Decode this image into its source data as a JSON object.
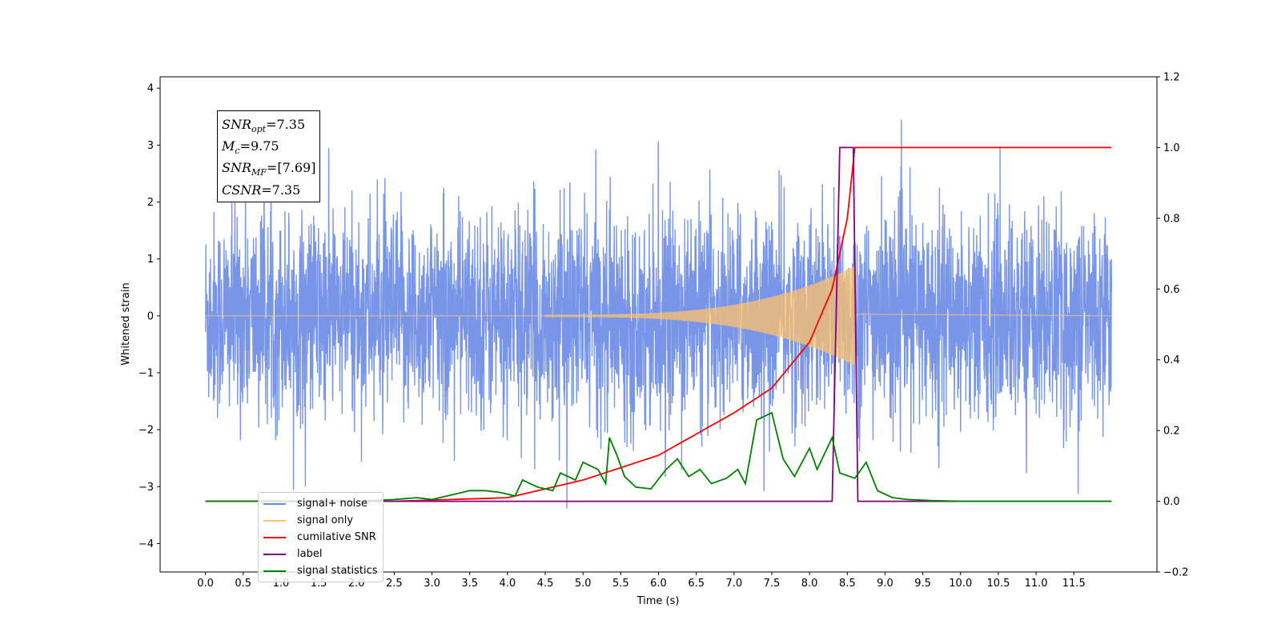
{
  "chart_data": {
    "type": "line",
    "title": "",
    "xlabel": "Time (s)",
    "ylabel": "Whitened strain",
    "y2label": "",
    "xlim": [
      -0.6,
      12.6
    ],
    "ylim": [
      -4.5,
      4.2
    ],
    "y2lim": [
      -0.2,
      1.2
    ],
    "x_ticks": [
      "0.0",
      "0.5",
      "1.0",
      "1.5",
      "2.0",
      "2.5",
      "3.0",
      "3.5",
      "4.0",
      "4.5",
      "5.0",
      "5.5",
      "6.0",
      "6.5",
      "7.0",
      "7.5",
      "8.0",
      "8.5",
      "9.0",
      "9.5",
      "10.0",
      "10.5",
      "11.0",
      "11.5"
    ],
    "y_ticks": [
      "4",
      "3",
      "2",
      "1",
      "0",
      "−1",
      "−2",
      "−3",
      "−4"
    ],
    "y2_ticks": [
      "1.2",
      "1.0",
      "0.8",
      "0.6",
      "0.4",
      "0.2",
      "0.0",
      "−0.2"
    ],
    "grid": false,
    "legend_position": "lower-left",
    "series": [
      {
        "name": "signal+ noise",
        "axis": "left",
        "color": "#6a89e6",
        "x_range": [
          0,
          12
        ],
        "noise_rms": 0.9,
        "peak_min": -4.1,
        "peak_max": 3.8
      },
      {
        "name": "signal only",
        "axis": "left",
        "color": "#ffc36b",
        "chirp_start": 4.5,
        "merger_time": 8.6,
        "peak_amplitude": 0.85
      },
      {
        "name": "cumilative SNR",
        "axis": "right",
        "x": [
          0.0,
          2.5,
          4.0,
          5.0,
          6.0,
          7.0,
          7.5,
          8.0,
          8.3,
          8.5,
          8.6,
          8.62,
          12.0
        ],
        "y": [
          0.0,
          0.0,
          0.01,
          0.06,
          0.13,
          0.25,
          0.32,
          0.45,
          0.6,
          0.8,
          1.0,
          1.0,
          1.0
        ],
        "color": "#ff0000"
      },
      {
        "name": "label",
        "axis": "right",
        "x": [
          0.0,
          8.3,
          8.4,
          8.58,
          8.64,
          12.0
        ],
        "y": [
          0.0,
          0.0,
          1.0,
          1.0,
          0.0,
          0.0
        ],
        "color": "#800080"
      },
      {
        "name": "signal statistics",
        "axis": "right",
        "x": [
          0.0,
          1.0,
          2.0,
          2.5,
          2.8,
          3.0,
          3.3,
          3.5,
          3.7,
          3.9,
          4.1,
          4.2,
          4.4,
          4.6,
          4.7,
          4.9,
          5.0,
          5.2,
          5.3,
          5.35,
          5.45,
          5.55,
          5.7,
          5.9,
          6.1,
          6.25,
          6.4,
          6.55,
          6.7,
          6.9,
          7.05,
          7.15,
          7.3,
          7.5,
          7.65,
          7.8,
          8.0,
          8.1,
          8.3,
          8.4,
          8.6,
          8.75,
          8.9,
          9.1,
          9.3,
          9.6,
          10.0,
          12.0
        ],
        "y": [
          0.0,
          0.0,
          0.0,
          0.005,
          0.01,
          0.005,
          0.02,
          0.03,
          0.03,
          0.025,
          0.015,
          0.06,
          0.04,
          0.03,
          0.08,
          0.06,
          0.11,
          0.09,
          0.05,
          0.18,
          0.13,
          0.07,
          0.04,
          0.035,
          0.09,
          0.12,
          0.07,
          0.09,
          0.05,
          0.065,
          0.09,
          0.05,
          0.23,
          0.25,
          0.12,
          0.07,
          0.15,
          0.09,
          0.18,
          0.08,
          0.065,
          0.11,
          0.03,
          0.01,
          0.005,
          0.002,
          0.0,
          0.0
        ],
        "color": "#008000"
      }
    ]
  },
  "info_box": {
    "rows": [
      {
        "sym": "SNR",
        "sub": "opt",
        "value": "=7.35"
      },
      {
        "sym": "M",
        "sub": "c",
        "value": "=9.75"
      },
      {
        "sym": "SNR",
        "sub": "MF",
        "value": "=[7.69]"
      },
      {
        "sym": "CSNR",
        "sub": "",
        "value": "=7.35"
      }
    ]
  },
  "legend": {
    "items": [
      {
        "label": "signal+ noise",
        "color": "#6a89e6"
      },
      {
        "label": "signal only",
        "color": "#ffc36b"
      },
      {
        "label": "cumilative SNR",
        "color": "#ff0000"
      },
      {
        "label": "label",
        "color": "#800080"
      },
      {
        "label": "signal statistics",
        "color": "#008000"
      }
    ]
  }
}
